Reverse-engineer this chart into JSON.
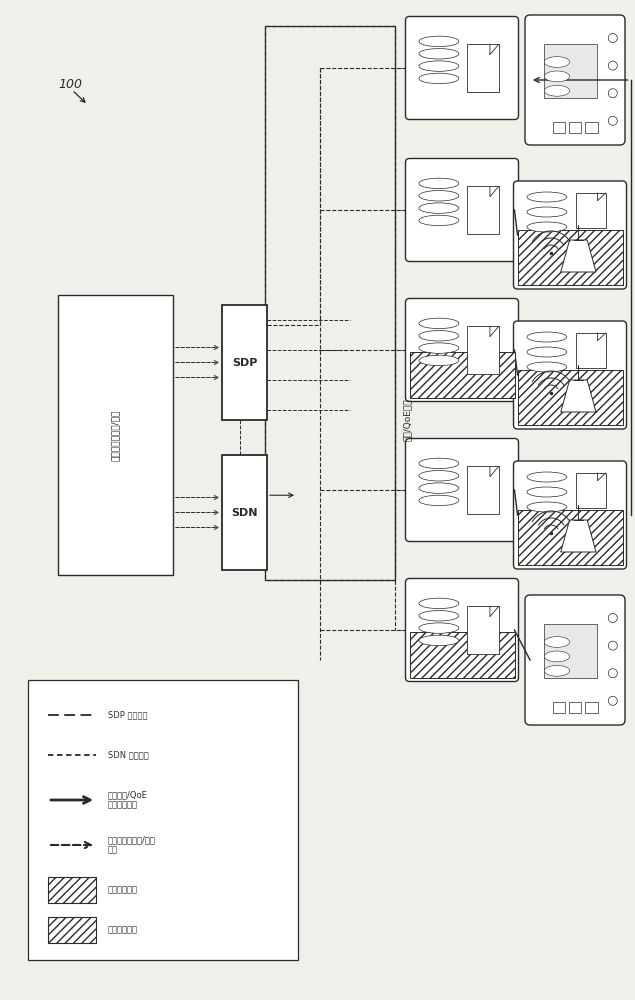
{
  "bg_color": "#f0efea",
  "dark": "#2a2a2a",
  "fig_w": 6.35,
  "fig_h": 10.0,
  "label_100": "100",
  "sdp_label": "SDP",
  "sdn_label": "SDN",
  "comp_label": "计算机应用程序/服务",
  "network_label": "网络/QoE状态",
  "legend_lines": [
    "SDP 配置信息",
    "SDN 配置信息",
    "网络状态/QoE\n传送状态信息",
    "计算机应用程序/服务\n请求",
    "元整功能节点",
    "部分功能节点"
  ]
}
